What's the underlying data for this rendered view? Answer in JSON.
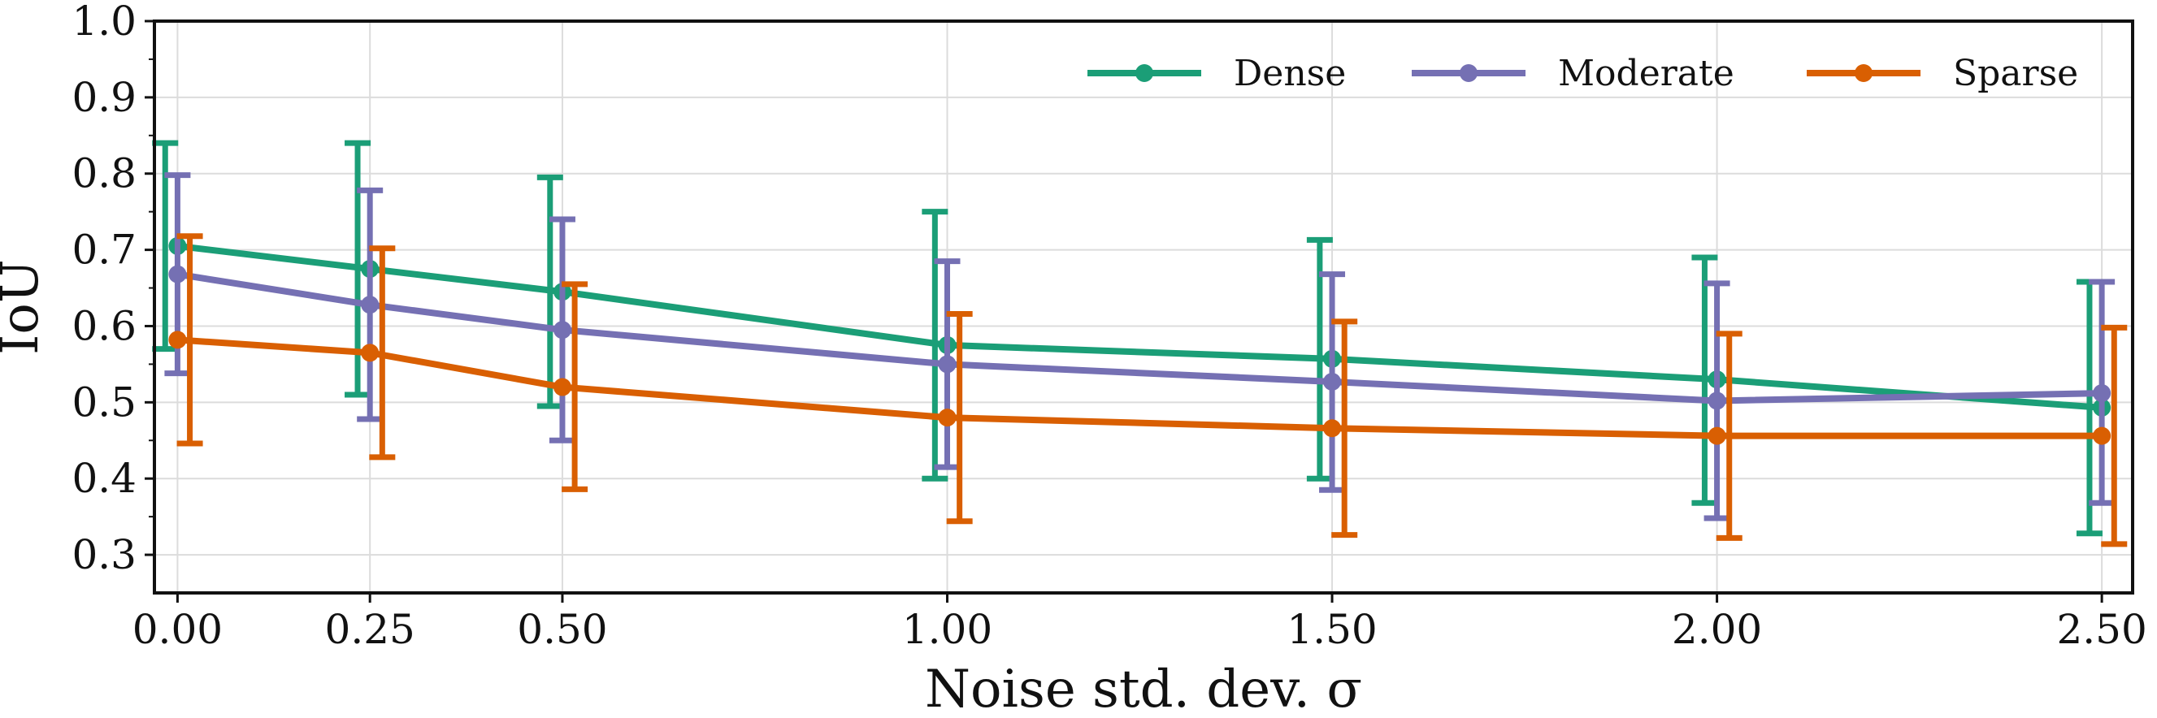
{
  "chart_data": {
    "type": "line",
    "title": "",
    "xlabel": "Noise std. dev. σ",
    "ylabel": "IoU",
    "xlim": [
      -0.03,
      2.54
    ],
    "ylim": [
      0.25,
      1.0
    ],
    "x": [
      0.0,
      0.25,
      0.5,
      1.0,
      1.5,
      2.0,
      2.5
    ],
    "x_tick_labels": [
      "0.00",
      "0.25",
      "0.50",
      "1.00",
      "1.50",
      "2.00",
      "2.50"
    ],
    "y_ticks": [
      0.3,
      0.4,
      0.5,
      0.6,
      0.7,
      0.8,
      0.9,
      1.0
    ],
    "y_tick_labels": [
      "0.3",
      "0.4",
      "0.5",
      "0.6",
      "0.7",
      "0.8",
      "0.9",
      "1.0"
    ],
    "grid": true,
    "legend_position": "top-right",
    "series": [
      {
        "name": "Dense",
        "color": "#1b9e77",
        "values": [
          0.705,
          0.675,
          0.645,
          0.575,
          0.557,
          0.53,
          0.493
        ],
        "err_low": [
          0.57,
          0.51,
          0.495,
          0.4,
          0.4,
          0.368,
          0.328
        ],
        "err_high": [
          0.84,
          0.84,
          0.795,
          0.75,
          0.713,
          0.69,
          0.658
        ]
      },
      {
        "name": "Moderate",
        "color": "#7570b3",
        "values": [
          0.668,
          0.628,
          0.595,
          0.55,
          0.527,
          0.502,
          0.512
        ],
        "err_low": [
          0.538,
          0.478,
          0.45,
          0.415,
          0.385,
          0.348,
          0.368
        ],
        "err_high": [
          0.798,
          0.778,
          0.74,
          0.685,
          0.668,
          0.656,
          0.658
        ]
      },
      {
        "name": "Sparse",
        "color": "#d95f02",
        "values": [
          0.582,
          0.565,
          0.52,
          0.48,
          0.466,
          0.456,
          0.456
        ],
        "err_low": [
          0.446,
          0.428,
          0.386,
          0.344,
          0.326,
          0.322,
          0.314
        ],
        "err_high": [
          0.718,
          0.702,
          0.655,
          0.616,
          0.606,
          0.59,
          0.598
        ]
      }
    ]
  }
}
